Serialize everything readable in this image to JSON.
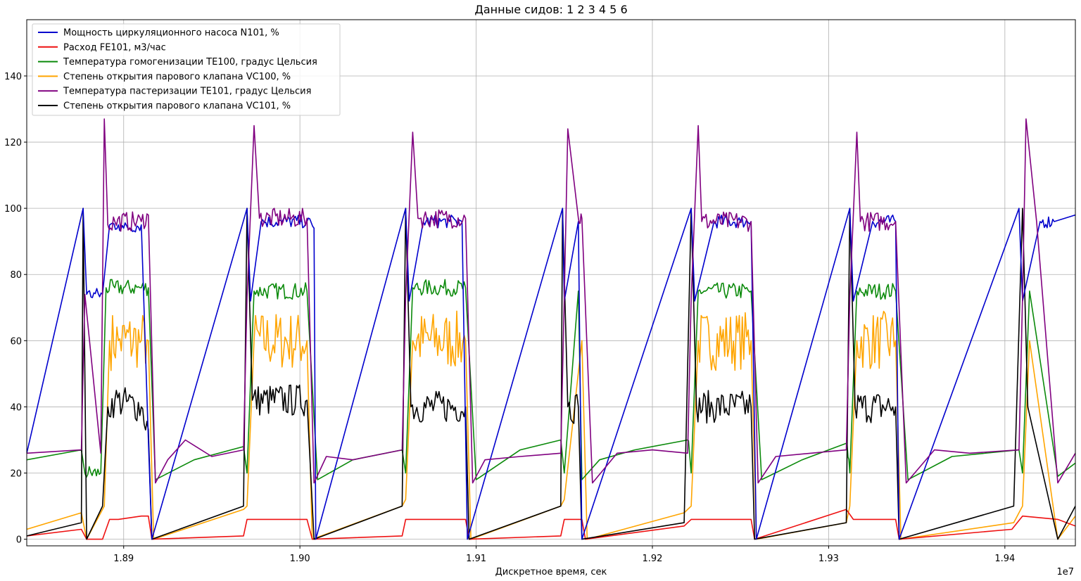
{
  "chart_data": {
    "type": "line",
    "title": "Данные сидов: 1 2 3 4 5 6",
    "xlabel": "Дискретное время, сек",
    "ylabel": "",
    "x_offset_label": "1e7",
    "xlim": [
      18.845,
      19.44
    ],
    "ylim": [
      -2,
      157
    ],
    "x_ticks": [
      18.9,
      19.0,
      19.1,
      19.2,
      19.3,
      19.4
    ],
    "x_tick_labels": [
      "1.89",
      "1.90",
      "1.91",
      "1.92",
      "1.93",
      "1.94"
    ],
    "y_ticks": [
      0,
      20,
      40,
      60,
      80,
      100,
      120,
      140
    ],
    "grid": true,
    "legend_position": "top-left",
    "cycles": [
      {
        "start": 18.877,
        "end": 18.915
      },
      {
        "start": 18.97,
        "end": 19.008
      },
      {
        "start": 19.06,
        "end": 19.095
      },
      {
        "start": 19.149,
        "end": 19.16
      },
      {
        "start": 19.22,
        "end": 19.258
      },
      {
        "start": 19.31,
        "end": 19.34
      },
      {
        "start": 19.41,
        "end": 19.435
      }
    ],
    "series": [
      {
        "name": "Мощность циркуляционного насоса N101, %",
        "color": "#0000cd",
        "x": [
          18.845,
          18.877,
          18.879,
          18.888,
          18.892,
          18.897,
          18.9,
          18.91,
          18.914,
          18.916,
          18.97,
          18.972,
          18.978,
          18.99,
          19.004,
          19.008,
          19.009,
          19.06,
          19.062,
          19.07,
          19.085,
          19.092,
          19.095,
          19.149,
          19.15,
          19.158,
          19.16,
          19.222,
          19.224,
          19.235,
          19.25,
          19.256,
          19.259,
          19.312,
          19.314,
          19.325,
          19.338,
          19.34,
          19.408,
          19.41,
          19.42,
          19.428,
          19.44
        ],
        "y": [
          26,
          100,
          74,
          74,
          95,
          95,
          94,
          95,
          30,
          0,
          100,
          72,
          96,
          96,
          96,
          94,
          0,
          100,
          72,
          96,
          96,
          96,
          0,
          100,
          72,
          96,
          0,
          100,
          72,
          96,
          96,
          96,
          0,
          100,
          72,
          96,
          96,
          0,
          100,
          72,
          96,
          96,
          98
        ]
      },
      {
        "name": "Расход FE101, м3/час",
        "color": "#ee1111",
        "x": [
          18.845,
          18.876,
          18.879,
          18.888,
          18.892,
          18.897,
          18.91,
          18.914,
          18.916,
          18.968,
          18.97,
          18.972,
          19.004,
          19.007,
          19.058,
          19.06,
          19.062,
          19.094,
          19.096,
          19.148,
          19.15,
          19.16,
          19.162,
          19.218,
          19.222,
          19.224,
          19.256,
          19.258,
          19.31,
          19.314,
          19.338,
          19.34,
          19.404,
          19.41,
          19.43,
          19.44
        ],
        "y": [
          1,
          3,
          0,
          0,
          6,
          6,
          7,
          7,
          0,
          1,
          6,
          6,
          6,
          0,
          1,
          6,
          6,
          6,
          0,
          1,
          6,
          6,
          0,
          4,
          6,
          6,
          6,
          0,
          9,
          6,
          6,
          0,
          3,
          7,
          6,
          4
        ]
      },
      {
        "name": "Температура гомогенизации TE100, градус Цельсия",
        "color": "#0b8a0b",
        "x": [
          18.845,
          18.876,
          18.878,
          18.887,
          18.89,
          18.895,
          18.91,
          18.914,
          18.918,
          18.94,
          18.968,
          18.97,
          18.974,
          19.004,
          19.01,
          19.03,
          19.058,
          19.06,
          19.064,
          19.094,
          19.1,
          19.125,
          19.148,
          19.15,
          19.158,
          19.16,
          19.17,
          19.19,
          19.22,
          19.222,
          19.226,
          19.256,
          19.262,
          19.285,
          19.31,
          19.312,
          19.316,
          19.338,
          19.345,
          19.37,
          19.408,
          19.41,
          19.414,
          19.43,
          19.44
        ],
        "y": [
          24,
          27,
          20,
          20,
          76,
          76,
          76,
          76,
          18,
          24,
          28,
          20,
          75,
          75,
          18,
          24,
          27,
          20,
          76,
          76,
          18,
          27,
          30,
          20,
          75,
          18,
          24,
          27,
          30,
          20,
          75,
          75,
          18,
          24,
          29,
          20,
          75,
          75,
          18,
          25,
          27,
          20,
          75,
          19,
          23
        ]
      },
      {
        "name": "Степень открытия парового клапана VC100, %",
        "color": "#ffa500",
        "x": [
          18.845,
          18.876,
          18.879,
          18.889,
          18.892,
          18.897,
          18.91,
          18.914,
          18.917,
          18.968,
          18.97,
          18.974,
          19.004,
          19.007,
          19.058,
          19.06,
          19.064,
          19.094,
          19.097,
          19.148,
          19.15,
          19.16,
          19.163,
          19.218,
          19.222,
          19.226,
          19.256,
          19.259,
          19.31,
          19.312,
          19.316,
          19.338,
          19.341,
          19.405,
          19.41,
          19.414,
          19.43,
          19.44
        ],
        "y": [
          3,
          8,
          0,
          10,
          60,
          60,
          60,
          60,
          0,
          9,
          10,
          60,
          60,
          0,
          10,
          12,
          60,
          60,
          0,
          10,
          12,
          60,
          0,
          8,
          10,
          60,
          60,
          0,
          5,
          10,
          60,
          60,
          0,
          5,
          10,
          60,
          0,
          7
        ]
      },
      {
        "name": "Температура пастеризации TE101, градус Цельсия",
        "color": "#800080",
        "x": [
          18.845,
          18.876,
          18.878,
          18.887,
          18.889,
          18.891,
          18.895,
          18.91,
          18.914,
          18.918,
          18.925,
          18.935,
          18.95,
          18.968,
          18.97,
          18.974,
          18.977,
          19.004,
          19.008,
          19.015,
          19.03,
          19.058,
          19.06,
          19.064,
          19.067,
          19.094,
          19.098,
          19.105,
          19.125,
          19.148,
          19.15,
          19.152,
          19.158,
          19.16,
          19.166,
          19.18,
          19.2,
          19.22,
          19.222,
          19.226,
          19.228,
          19.256,
          19.26,
          19.27,
          19.29,
          19.31,
          19.312,
          19.316,
          19.318,
          19.338,
          19.344,
          19.36,
          19.38,
          19.408,
          19.41,
          19.412,
          19.418,
          19.43,
          19.44
        ],
        "y": [
          26,
          27,
          74,
          26,
          127,
          95,
          96,
          96,
          98,
          17,
          24,
          30,
          25,
          27,
          73,
          125,
          97,
          97,
          17,
          25,
          24,
          27,
          73,
          123,
          97,
          97,
          17,
          24,
          25,
          26,
          73,
          124,
          97,
          97,
          17,
          26,
          27,
          26,
          73,
          125,
          96,
          96,
          17,
          25,
          26,
          27,
          73,
          123,
          96,
          96,
          17,
          27,
          26,
          27,
          73,
          127,
          96,
          17,
          26
        ]
      },
      {
        "name": "Степень открытия парового клапана VC101, %",
        "color": "#000000",
        "x": [
          18.845,
          18.876,
          18.877,
          18.879,
          18.888,
          18.891,
          18.895,
          18.91,
          18.914,
          18.916,
          18.968,
          18.97,
          18.973,
          19.004,
          19.008,
          19.058,
          19.06,
          19.063,
          19.094,
          19.096,
          19.148,
          19.149,
          19.152,
          19.158,
          19.16,
          19.218,
          19.222,
          19.225,
          19.256,
          19.258,
          19.31,
          19.312,
          19.315,
          19.338,
          19.34,
          19.405,
          19.41,
          19.413,
          19.43,
          19.44
        ],
        "y": [
          1,
          5,
          100,
          0,
          10,
          40,
          42,
          40,
          33,
          0,
          10,
          100,
          42,
          42,
          0,
          10,
          100,
          40,
          40,
          0,
          10,
          100,
          40,
          40,
          0,
          5,
          100,
          40,
          40,
          0,
          5,
          100,
          40,
          40,
          0,
          10,
          100,
          40,
          0,
          10
        ]
      }
    ]
  }
}
